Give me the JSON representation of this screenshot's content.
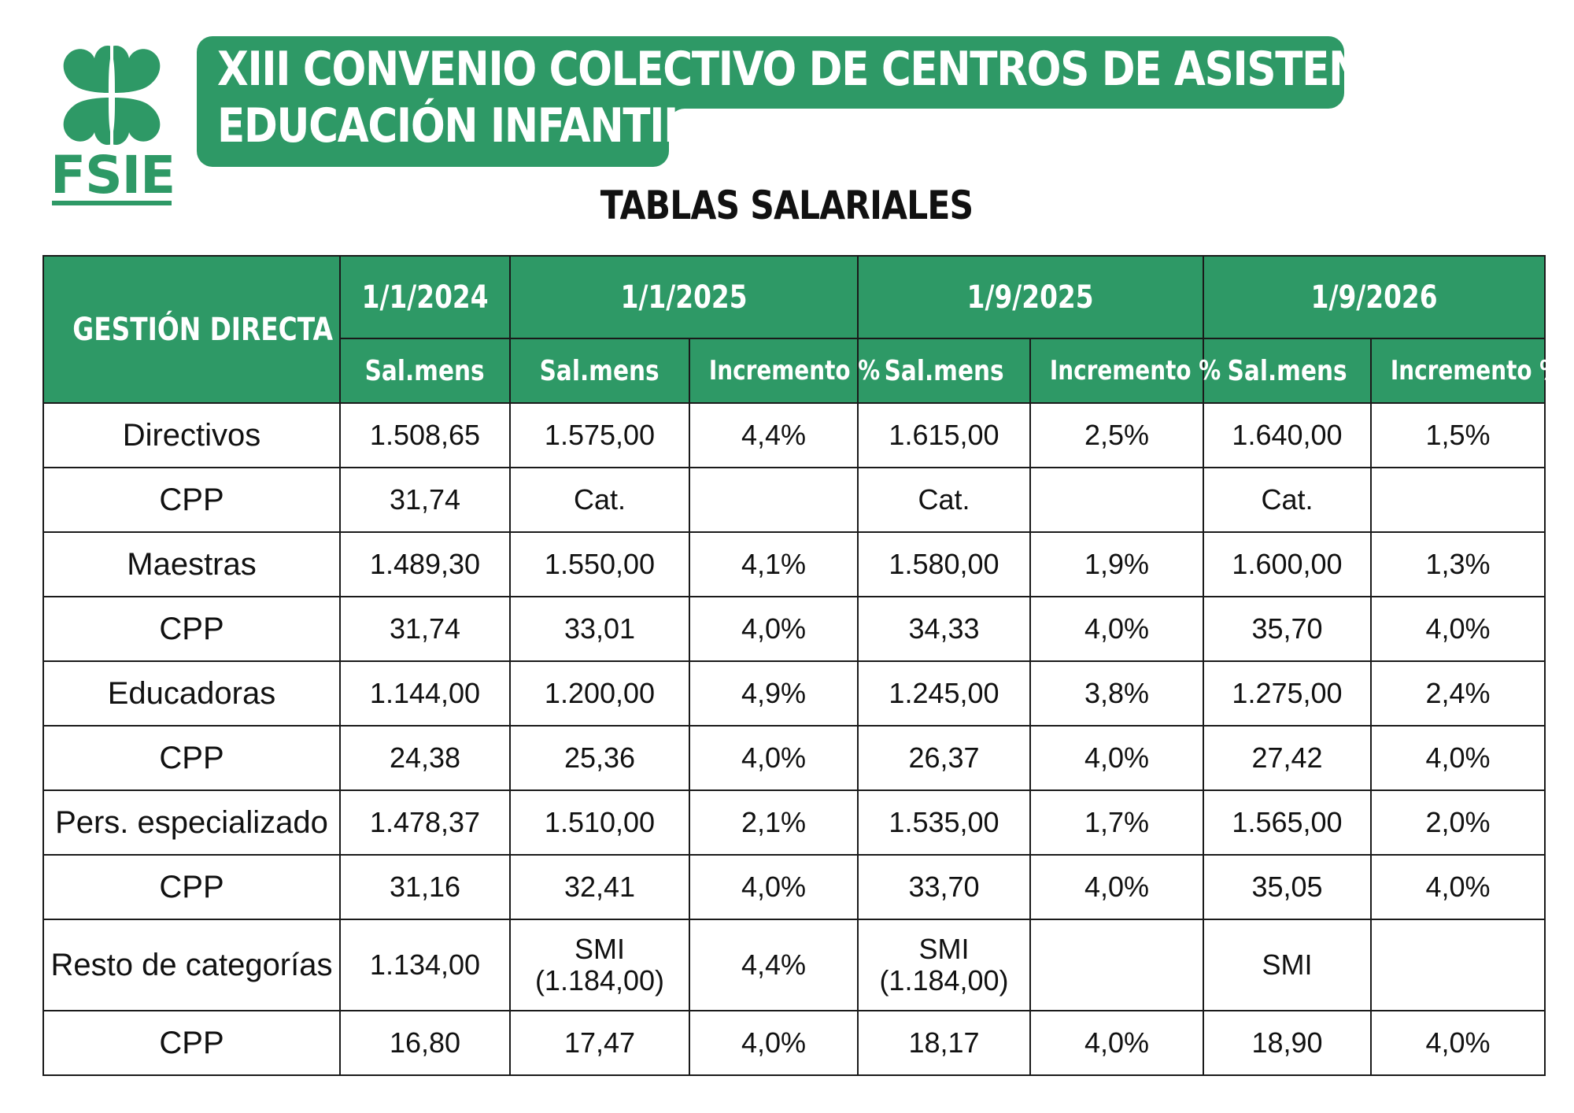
{
  "logo": {
    "text": "FSIE",
    "icon": "four-leaf-clover-icon",
    "color": "#2e9966"
  },
  "header": {
    "title_line1": "XIII CONVENIO COLECTIVO DE CENTROS DE ASISTENCIA Y",
    "title_line2": "EDUCACIÓN INFANTIL",
    "subtitle": "TABLAS SALARIALES",
    "accent_color": "#2e9966"
  },
  "table": {
    "corner": "GESTIÓN DIRECTA",
    "periods": [
      "1/1/2024",
      "1/1/2025",
      "1/9/2025",
      "1/9/2026"
    ],
    "sub_headers": [
      "Sal.mens",
      "Sal.mens",
      "Incremento %",
      "Sal.mens",
      "Incremento %",
      "Sal.mens",
      "Incremento %"
    ],
    "rows": [
      {
        "label": "Directivos",
        "cells": [
          "1.508,65",
          "1.575,00",
          "4,4%",
          "1.615,00",
          "2,5%",
          "1.640,00",
          "1,5%"
        ]
      },
      {
        "label": "CPP",
        "cells": [
          "31,74",
          "Cat.",
          "",
          "Cat.",
          "",
          "Cat.",
          ""
        ]
      },
      {
        "label": "Maestras",
        "cells": [
          "1.489,30",
          "1.550,00",
          "4,1%",
          "1.580,00",
          "1,9%",
          "1.600,00",
          "1,3%"
        ]
      },
      {
        "label": "CPP",
        "cells": [
          "31,74",
          "33,01",
          "4,0%",
          "34,33",
          "4,0%",
          "35,70",
          "4,0%"
        ]
      },
      {
        "label": "Educadoras",
        "cells": [
          "1.144,00",
          "1.200,00",
          "4,9%",
          "1.245,00",
          "3,8%",
          "1.275,00",
          "2,4%"
        ]
      },
      {
        "label": "CPP",
        "cells": [
          "24,38",
          "25,36",
          "4,0%",
          "26,37",
          "4,0%",
          "27,42",
          "4,0%"
        ]
      },
      {
        "label": "Pers. especializado",
        "cells": [
          "1.478,37",
          "1.510,00",
          "2,1%",
          "1.535,00",
          "1,7%",
          "1.565,00",
          "2,0%"
        ]
      },
      {
        "label": "CPP",
        "cells": [
          "31,16",
          "32,41",
          "4,0%",
          "33,70",
          "4,0%",
          "35,05",
          "4,0%"
        ]
      },
      {
        "label": "Resto de categorías",
        "cells": [
          "1.134,00",
          "SMI",
          "4,4%",
          "SMI",
          "",
          "SMI",
          ""
        ],
        "cell_notes": [
          "",
          "(1.184,00)",
          "",
          "(1.184,00)",
          "",
          "",
          ""
        ]
      },
      {
        "label": "CPP",
        "cells": [
          "16,80",
          "17,47",
          "4,0%",
          "18,17",
          "4,0%",
          "18,90",
          "4,0%"
        ]
      }
    ]
  }
}
